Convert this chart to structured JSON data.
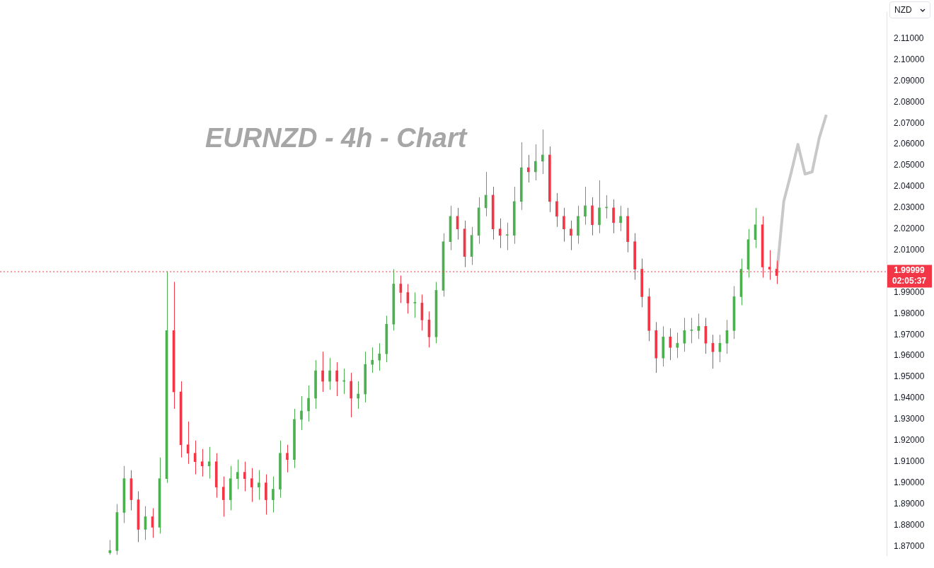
{
  "chart_data": {
    "type": "candlestick",
    "title": "EURNZD - 4h - Chart",
    "categories": [
      null,
      null,
      null,
      null,
      null,
      null,
      null,
      null,
      null,
      null,
      null,
      null,
      null,
      null,
      null,
      null,
      null,
      null,
      null,
      null,
      null,
      null,
      null,
      null,
      null,
      null,
      null,
      null,
      null,
      null,
      null,
      null,
      null,
      null,
      null,
      null,
      null,
      null,
      null,
      null,
      null,
      null,
      null,
      null,
      null,
      null,
      null,
      null,
      null,
      null,
      null,
      null,
      null,
      null,
      null,
      null,
      null,
      null,
      null,
      null,
      null,
      null,
      null,
      null,
      null,
      null,
      null,
      null,
      null,
      null,
      null,
      null,
      null,
      null,
      null,
      null,
      null,
      null,
      null,
      null,
      null,
      null,
      null,
      null,
      null,
      null,
      null,
      null,
      null,
      null,
      null,
      null,
      null,
      null,
      null,
      null,
      null,
      null,
      null,
      null,
      null,
      null,
      null,
      null,
      null,
      null,
      null,
      null,
      null,
      null,
      null,
      null,
      null,
      null,
      null,
      null,
      null,
      null,
      null,
      null,
      null,
      null,
      null,
      null,
      null
    ],
    "ylim": [
      1.8655,
      2.1225
    ],
    "yticks": [
      {
        "value": 1.87,
        "label": "1.87000"
      },
      {
        "value": 1.88,
        "label": "1.88000"
      },
      {
        "value": 1.89,
        "label": "1.89000"
      },
      {
        "value": 1.9,
        "label": "1.90000"
      },
      {
        "value": 1.91,
        "label": "1.91000"
      },
      {
        "value": 1.92,
        "label": "1.92000"
      },
      {
        "value": 1.93,
        "label": "1.93000"
      },
      {
        "value": 1.94,
        "label": "1.94000"
      },
      {
        "value": 1.95,
        "label": "1.95000"
      },
      {
        "value": 1.96,
        "label": "1.96000"
      },
      {
        "value": 1.97,
        "label": "1.97000"
      },
      {
        "value": 1.98,
        "label": "1.98000"
      },
      {
        "value": 1.99,
        "label": "1.99000"
      },
      {
        "value": 2.01,
        "label": "2.01000"
      },
      {
        "value": 2.02,
        "label": "2.02000"
      },
      {
        "value": 2.03,
        "label": "2.03000"
      },
      {
        "value": 2.04,
        "label": "2.04000"
      },
      {
        "value": 2.05,
        "label": "2.05000"
      },
      {
        "value": 2.06,
        "label": "2.06000"
      },
      {
        "value": 2.07,
        "label": "2.07000"
      },
      {
        "value": 2.08,
        "label": "2.08000"
      },
      {
        "value": 2.09,
        "label": "2.09000"
      },
      {
        "value": 2.1,
        "label": "2.10000"
      },
      {
        "value": 2.11,
        "label": "2.11000"
      }
    ],
    "grid": false,
    "legend": false,
    "tick_labels": "y",
    "colors": [
      null,
      null,
      null,
      null,
      null,
      null,
      null,
      null,
      null,
      null,
      null,
      null,
      null,
      null,
      null,
      "#4caf50",
      "#4caf50",
      "#4caf50",
      "#f23645",
      "#f23645",
      "#4caf50",
      "#f23645",
      "#4caf50",
      "#4caf50",
      "#f23645",
      "#f23645",
      "#f23645",
      "#f23645",
      "#f23645",
      "#4caf50",
      "#f23645",
      "#f23645",
      "#4caf50",
      "#4caf50",
      "#f23645",
      "#f23645",
      "#4caf50",
      "#f23645",
      "#4caf50",
      "#4caf50",
      "#f23645",
      "#4caf50",
      "#4caf50",
      "#4caf50",
      "#4caf50",
      "#f23645",
      "#4caf50",
      "#f23645",
      "#4caf50",
      "#f23645",
      "#4caf50",
      "#4caf50",
      "#4caf50",
      "#4caf50",
      "#4caf50",
      "#4caf50",
      "#f23645",
      "#f23645",
      "#4caf50",
      "#f23645",
      "#f23645",
      "#4caf50",
      "#4caf50",
      "#4caf50",
      "#f23645",
      "#f23645",
      "#4caf50",
      "#4caf50",
      "#4caf50",
      "#f23645",
      "#f23645",
      "#4caf50",
      "#4caf50",
      "#4caf50",
      "#f23645",
      "#4caf50",
      "#4caf50",
      "#f23645",
      "#f23645",
      "#f23645",
      "#f23645",
      "#4caf50",
      "#4caf50",
      "#f23645",
      "#4caf50",
      "#4caf50",
      "#f23645",
      "#4caf50",
      "#f23645",
      "#f23645",
      "#f23645",
      "#f23645",
      "#f23645",
      "#4caf50",
      "#f23645",
      "#4caf50",
      "#4caf50",
      "#4caf50",
      "#4caf50",
      "#f23645",
      "#f23645",
      "#4caf50",
      "#4caf50",
      "#4caf50",
      "#4caf50",
      "#4caf50",
      "#4caf50",
      "#f23645",
      "#f23645",
      "#f23645",
      null,
      null,
      null,
      null,
      null,
      null,
      null,
      null,
      null,
      null,
      null,
      null,
      null,
      null,
      null
    ],
    "ohlc": [
      null,
      null,
      null,
      null,
      null,
      null,
      null,
      null,
      null,
      null,
      null,
      null,
      null,
      null,
      null,
      [
        1.867,
        1.873,
        1.866,
        1.868
      ],
      [
        1.868,
        1.89,
        1.866,
        1.886
      ],
      [
        1.886,
        1.908,
        1.881,
        1.902
      ],
      [
        1.902,
        1.906,
        1.887,
        1.892
      ],
      [
        1.892,
        1.896,
        1.872,
        1.878
      ],
      [
        1.878,
        1.889,
        1.873,
        1.884
      ],
      [
        1.884,
        1.888,
        1.874,
        1.879
      ],
      [
        1.879,
        1.912,
        1.876,
        1.902
      ],
      [
        1.902,
        2.0,
        1.9,
        1.972
      ],
      [
        1.972,
        1.995,
        1.935,
        1.943
      ],
      [
        1.943,
        1.948,
        1.912,
        1.918
      ],
      [
        1.918,
        1.929,
        1.909,
        1.914
      ],
      [
        1.914,
        1.92,
        1.904,
        1.91
      ],
      [
        1.91,
        1.916,
        1.903,
        1.908
      ],
      [
        1.908,
        1.917,
        1.902,
        1.91
      ],
      [
        1.91,
        1.914,
        1.893,
        1.898
      ],
      [
        1.898,
        1.903,
        1.884,
        1.892
      ],
      [
        1.892,
        1.908,
        1.887,
        1.902
      ],
      [
        1.902,
        1.911,
        1.897,
        1.905
      ],
      [
        1.905,
        1.91,
        1.896,
        1.902
      ],
      [
        1.902,
        1.907,
        1.891,
        1.898
      ],
      [
        1.898,
        1.906,
        1.892,
        1.9
      ],
      [
        1.9,
        1.904,
        1.885,
        1.892
      ],
      [
        1.892,
        1.903,
        1.886,
        1.897
      ],
      [
        1.897,
        1.92,
        1.893,
        1.914
      ],
      [
        1.914,
        1.918,
        1.905,
        1.911
      ],
      [
        1.911,
        1.935,
        1.907,
        1.93
      ],
      [
        1.93,
        1.941,
        1.925,
        1.934
      ],
      [
        1.934,
        1.946,
        1.929,
        1.94
      ],
      [
        1.94,
        1.958,
        1.935,
        1.953
      ],
      [
        1.953,
        1.962,
        1.943,
        1.948
      ],
      [
        1.948,
        1.959,
        1.944,
        1.953
      ],
      [
        1.953,
        1.957,
        1.941,
        1.948
      ],
      [
        1.948,
        1.954,
        1.942,
        1.948
      ],
      [
        1.948,
        1.952,
        1.931,
        1.94
      ],
      [
        1.94,
        1.948,
        1.935,
        1.942
      ],
      [
        1.942,
        1.962,
        1.938,
        1.956
      ],
      [
        1.956,
        1.964,
        1.952,
        1.958
      ],
      [
        1.958,
        1.966,
        1.953,
        1.961
      ],
      [
        1.961,
        1.979,
        1.957,
        1.975
      ],
      [
        1.975,
        2.001,
        1.972,
        1.994
      ],
      [
        1.994,
        1.998,
        1.985,
        1.99
      ],
      [
        1.99,
        1.994,
        1.98,
        1.985
      ],
      [
        1.985,
        1.99,
        1.978,
        1.985
      ],
      [
        1.985,
        1.989,
        1.972,
        1.977
      ],
      [
        1.977,
        1.981,
        1.964,
        1.969
      ],
      [
        1.969,
        1.995,
        1.966,
        1.991
      ],
      [
        1.991,
        2.018,
        1.988,
        2.014
      ],
      [
        2.014,
        2.031,
        2.01,
        2.026
      ],
      [
        2.026,
        2.03,
        2.015,
        2.02
      ],
      [
        2.02,
        2.024,
        2.002,
        2.007
      ],
      [
        2.007,
        2.021,
        2.003,
        2.017
      ],
      [
        2.017,
        2.035,
        2.013,
        2.03
      ],
      [
        2.03,
        2.047,
        2.026,
        2.036
      ],
      [
        2.036,
        2.04,
        2.015,
        2.02
      ],
      [
        2.02,
        2.025,
        2.011,
        2.017
      ],
      [
        2.017,
        2.023,
        2.01,
        2.017
      ],
      [
        2.017,
        2.04,
        2.013,
        2.033
      ],
      [
        2.033,
        2.061,
        2.029,
        2.049
      ],
      [
        2.049,
        2.055,
        2.042,
        2.047
      ],
      [
        2.047,
        2.06,
        2.043,
        2.052
      ],
      [
        2.052,
        2.067,
        2.046,
        2.055
      ],
      [
        2.055,
        2.059,
        2.028,
        2.033
      ],
      [
        2.033,
        2.037,
        2.021,
        2.026
      ],
      [
        2.026,
        2.03,
        2.014,
        2.02
      ],
      [
        2.02,
        2.024,
        2.01,
        2.017
      ],
      [
        2.017,
        2.031,
        2.013,
        2.026
      ],
      [
        2.026,
        2.04,
        2.022,
        2.031
      ],
      [
        2.031,
        2.035,
        2.017,
        2.022
      ],
      [
        2.022,
        2.043,
        2.018,
        2.03
      ],
      [
        2.03,
        2.036,
        2.025,
        2.03
      ],
      [
        2.03,
        2.034,
        2.018,
        2.023
      ],
      [
        2.023,
        2.031,
        2.019,
        2.026
      ],
      [
        2.026,
        2.03,
        2.009,
        2.014
      ],
      [
        2.014,
        2.018,
        1.996,
        2.001
      ],
      [
        2.001,
        2.006,
        1.983,
        1.988
      ],
      [
        1.988,
        1.992,
        1.967,
        1.972
      ],
      [
        1.972,
        1.976,
        1.952,
        1.959
      ],
      [
        1.959,
        1.974,
        1.955,
        1.969
      ],
      [
        1.969,
        1.973,
        1.958,
        1.964
      ],
      [
        1.964,
        1.971,
        1.959,
        1.966
      ],
      [
        1.966,
        1.978,
        1.962,
        1.972
      ],
      [
        1.972,
        1.978,
        1.966,
        1.972
      ],
      [
        1.972,
        1.98,
        1.968,
        1.974
      ],
      [
        1.974,
        1.978,
        1.961,
        1.966
      ],
      [
        1.966,
        1.97,
        1.954,
        1.962
      ],
      [
        1.962,
        1.97,
        1.957,
        1.966
      ],
      [
        1.966,
        1.977,
        1.961,
        1.972
      ],
      [
        1.972,
        1.993,
        1.968,
        1.988
      ],
      [
        1.988,
        2.006,
        1.984,
        2.001
      ],
      [
        2.001,
        2.02,
        1.997,
        2.015
      ],
      [
        2.015,
        2.03,
        2.011,
        2.022
      ],
      [
        2.022,
        2.026,
        1.997,
        2.002
      ],
      [
        2.002,
        2.01,
        1.996,
        2.001
      ],
      [
        2.001,
        2.005,
        1.994,
        1.998
      ],
      null,
      null,
      null,
      null,
      null,
      null,
      null,
      null,
      null,
      null,
      null,
      null,
      null,
      null,
      null
    ],
    "series": [
      {
        "type": "line",
        "color": "#c8c8c8",
        "values": [
          null,
          null,
          null,
          null,
          null,
          null,
          null,
          null,
          null,
          null,
          null,
          null,
          null,
          null,
          null,
          null,
          null,
          null,
          null,
          null,
          null,
          null,
          null,
          null,
          null,
          null,
          null,
          null,
          null,
          null,
          null,
          null,
          null,
          null,
          null,
          null,
          null,
          null,
          null,
          null,
          null,
          null,
          null,
          null,
          null,
          null,
          null,
          null,
          null,
          null,
          null,
          null,
          null,
          null,
          null,
          null,
          null,
          null,
          null,
          null,
          null,
          null,
          null,
          null,
          null,
          null,
          null,
          null,
          null,
          null,
          null,
          null,
          null,
          null,
          null,
          null,
          null,
          null,
          null,
          null,
          null,
          null,
          null,
          null,
          null,
          null,
          null,
          null,
          null,
          null,
          null,
          null,
          null,
          null,
          null,
          null,
          null,
          null,
          null,
          null,
          null,
          null,
          null,
          null,
          null,
          null,
          null,
          null,
          null,
          1.998,
          2.033,
          2.046,
          2.06,
          2.046,
          2.047,
          2.063,
          2.074,
          null,
          null,
          null,
          null,
          null,
          null,
          null,
          null
        ]
      }
    ],
    "ref_lines": [
      {
        "axis": "y",
        "value": 1.99999,
        "label": "1.99999",
        "color": "#f23645",
        "line_style": "dotted"
      }
    ],
    "annotations": [
      "02:05:37",
      "NZD"
    ]
  }
}
